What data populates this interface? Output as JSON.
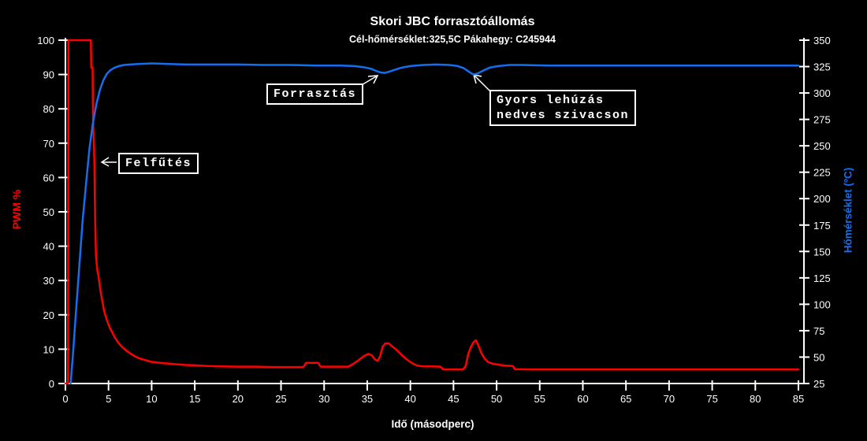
{
  "chart_data": {
    "type": "line",
    "title": "Skori JBC forrasztóállomás",
    "subtitle": "Cél-hőmérséklet:325,5C Pákahegy: C245944",
    "xlabel": "Idő (másodperc)",
    "background_color": "#000000",
    "axis_color": "#ffffff",
    "text_color": "#ffffff",
    "grid": false,
    "legend": "none",
    "x_axis": {
      "min": 0,
      "max": 85,
      "ticks": [
        0,
        5,
        10,
        15,
        20,
        25,
        30,
        35,
        40,
        45,
        50,
        55,
        60,
        65,
        70,
        75,
        80,
        85
      ]
    },
    "left_axis": {
      "label": "PWM %",
      "min": 0,
      "max": 100,
      "ticks": [
        0,
        10,
        20,
        30,
        40,
        50,
        60,
        70,
        80,
        90,
        100
      ],
      "color": "#ff0000"
    },
    "right_axis": {
      "label": "Hőmérséklet (ºC)",
      "min": 25,
      "max": 350,
      "ticks": [
        25,
        50,
        75,
        100,
        125,
        150,
        175,
        200,
        225,
        250,
        275,
        300,
        325,
        350
      ],
      "color": "#156ef0"
    },
    "series": [
      {
        "name": "PWM",
        "axis": "left",
        "color": "#ff0000",
        "points": [
          [
            0,
            0
          ],
          [
            0.3,
            0
          ],
          [
            0.35,
            100
          ],
          [
            2.95,
            100
          ],
          [
            3.0,
            92
          ],
          [
            3.15,
            92
          ],
          [
            3.2,
            78
          ],
          [
            3.35,
            65
          ],
          [
            3.45,
            48
          ],
          [
            3.55,
            37
          ],
          [
            3.7,
            33
          ],
          [
            3.85,
            31
          ],
          [
            4.0,
            28
          ],
          [
            4.2,
            25
          ],
          [
            4.5,
            21
          ],
          [
            4.8,
            18.5
          ],
          [
            5.1,
            16.5
          ],
          [
            5.4,
            15
          ],
          [
            5.7,
            13.5
          ],
          [
            6.1,
            12
          ],
          [
            6.5,
            10.8
          ],
          [
            7,
            9.7
          ],
          [
            7.5,
            8.8
          ],
          [
            8,
            8
          ],
          [
            8.6,
            7.3
          ],
          [
            9.3,
            6.8
          ],
          [
            10,
            6.3
          ],
          [
            11,
            6
          ],
          [
            12,
            5.8
          ],
          [
            13,
            5.6
          ],
          [
            14,
            5.4
          ],
          [
            15,
            5.3
          ],
          [
            16.5,
            5.1
          ],
          [
            18,
            5
          ],
          [
            20,
            4.9
          ],
          [
            22,
            4.9
          ],
          [
            24,
            4.8
          ],
          [
            26,
            4.8
          ],
          [
            27.6,
            4.8
          ],
          [
            27.9,
            6
          ],
          [
            29.3,
            6
          ],
          [
            29.6,
            4.9
          ],
          [
            31,
            4.9
          ],
          [
            32.8,
            4.9
          ],
          [
            33.3,
            5.6
          ],
          [
            34,
            6.8
          ],
          [
            34.6,
            8
          ],
          [
            35.1,
            8.6
          ],
          [
            35.5,
            8.3
          ],
          [
            35.9,
            7
          ],
          [
            36.2,
            6.6
          ],
          [
            36.5,
            8
          ],
          [
            36.8,
            10.8
          ],
          [
            37.1,
            11.7
          ],
          [
            37.5,
            11.7
          ],
          [
            37.9,
            10.8
          ],
          [
            38.3,
            10
          ],
          [
            38.8,
            8.8
          ],
          [
            39.3,
            7.6
          ],
          [
            39.8,
            6.6
          ],
          [
            40.3,
            5.8
          ],
          [
            40.8,
            5.2
          ],
          [
            41.5,
            5
          ],
          [
            42.5,
            5
          ],
          [
            43.5,
            4.9
          ],
          [
            43.8,
            4.1
          ],
          [
            45,
            4.1
          ],
          [
            46.1,
            4.1
          ],
          [
            46.4,
            5
          ],
          [
            46.7,
            8.5
          ],
          [
            47.0,
            10.5
          ],
          [
            47.3,
            12
          ],
          [
            47.6,
            12.6
          ],
          [
            47.9,
            11
          ],
          [
            48.2,
            9
          ],
          [
            48.6,
            7.3
          ],
          [
            49,
            6.3
          ],
          [
            49.5,
            5.8
          ],
          [
            50.2,
            5.5
          ],
          [
            51,
            5.2
          ],
          [
            51.9,
            5.1
          ],
          [
            52.1,
            4.2
          ],
          [
            54,
            4.1
          ],
          [
            58,
            4.1
          ],
          [
            62,
            4.1
          ],
          [
            66,
            4.1
          ],
          [
            70,
            4.1
          ],
          [
            75,
            4.1
          ],
          [
            80,
            4.1
          ],
          [
            85,
            4.1
          ]
        ]
      },
      {
        "name": "Hőmérséklet",
        "axis": "right",
        "color": "#156ef0",
        "points": [
          [
            0.6,
            25
          ],
          [
            0.9,
            55
          ],
          [
            1.2,
            90
          ],
          [
            1.6,
            135
          ],
          [
            2.0,
            180
          ],
          [
            2.4,
            215
          ],
          [
            2.8,
            248
          ],
          [
            3.2,
            272
          ],
          [
            3.6,
            290
          ],
          [
            4.0,
            303
          ],
          [
            4.4,
            312
          ],
          [
            4.8,
            318
          ],
          [
            5.2,
            321.5
          ],
          [
            5.7,
            324
          ],
          [
            6.2,
            325.5
          ],
          [
            6.8,
            326.5
          ],
          [
            7.5,
            327
          ],
          [
            8.5,
            327.5
          ],
          [
            10,
            328
          ],
          [
            12,
            327.5
          ],
          [
            14,
            327
          ],
          [
            17,
            327
          ],
          [
            20,
            327
          ],
          [
            23,
            326.5
          ],
          [
            26,
            326.5
          ],
          [
            29,
            326
          ],
          [
            32,
            326
          ],
          [
            33.5,
            325.5
          ],
          [
            34.5,
            324.5
          ],
          [
            35.4,
            323
          ],
          [
            36.0,
            321
          ],
          [
            36.5,
            319.5
          ],
          [
            37.0,
            319
          ],
          [
            37.5,
            320
          ],
          [
            38.2,
            322
          ],
          [
            39,
            324
          ],
          [
            40,
            325.5
          ],
          [
            41.5,
            326.5
          ],
          [
            43,
            327
          ],
          [
            44.5,
            326.5
          ],
          [
            45.5,
            325.5
          ],
          [
            46.2,
            323.5
          ],
          [
            46.8,
            320
          ],
          [
            47.3,
            317.5
          ],
          [
            47.8,
            318.5
          ],
          [
            48.4,
            321
          ],
          [
            49.2,
            324
          ],
          [
            50.2,
            325.5
          ],
          [
            51.5,
            326.5
          ],
          [
            53,
            326.5
          ],
          [
            56,
            326
          ],
          [
            60,
            326
          ],
          [
            64,
            326
          ],
          [
            68,
            326
          ],
          [
            72,
            326
          ],
          [
            76,
            326
          ],
          [
            80,
            326
          ],
          [
            85,
            326
          ]
        ]
      }
    ],
    "annotations": [
      {
        "text": "Felfűtés",
        "arrow_points_to_seconds": 4
      },
      {
        "text": "Forrasztás",
        "arrow_points_to_seconds": 37
      },
      {
        "lines": [
          "Gyors lehúzás",
          "nedves szivacson"
        ],
        "arrow_points_to_seconds": 47
      }
    ]
  }
}
